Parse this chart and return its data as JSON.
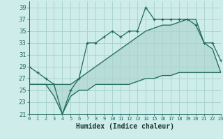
{
  "xlabel": "Humidex (Indice chaleur)",
  "background_color": "#ceecea",
  "grid_color": "#aad4d0",
  "line_color": "#1f6b5e",
  "x": [
    0,
    1,
    2,
    3,
    4,
    5,
    6,
    7,
    8,
    9,
    10,
    11,
    12,
    13,
    14,
    15,
    16,
    17,
    18,
    19,
    20,
    21,
    22,
    23
  ],
  "y_jagged": [
    29,
    28,
    27,
    26,
    21,
    25,
    27,
    33,
    33,
    34,
    35,
    34,
    35,
    35,
    39,
    37,
    37,
    37,
    37,
    37,
    36,
    33,
    33,
    30
  ],
  "y_upper": [
    26,
    26,
    26,
    26,
    26,
    26,
    27,
    28,
    29,
    30,
    31,
    32,
    33,
    34,
    35,
    35.5,
    36,
    36,
    36.5,
    37,
    37,
    33,
    32,
    28
  ],
  "y_lower": [
    26,
    26,
    26,
    24,
    21,
    24,
    25,
    25,
    26,
    26,
    26,
    26,
    26,
    26.5,
    27,
    27,
    27.5,
    27.5,
    28,
    28,
    28,
    28,
    28,
    28
  ],
  "ylim": [
    21,
    40
  ],
  "yticks": [
    21,
    23,
    25,
    27,
    29,
    31,
    33,
    35,
    37,
    39
  ],
  "xlim": [
    0,
    23
  ],
  "xticks": [
    0,
    1,
    2,
    3,
    4,
    5,
    6,
    7,
    8,
    9,
    10,
    11,
    12,
    13,
    14,
    15,
    16,
    17,
    18,
    19,
    20,
    21,
    22,
    23
  ]
}
